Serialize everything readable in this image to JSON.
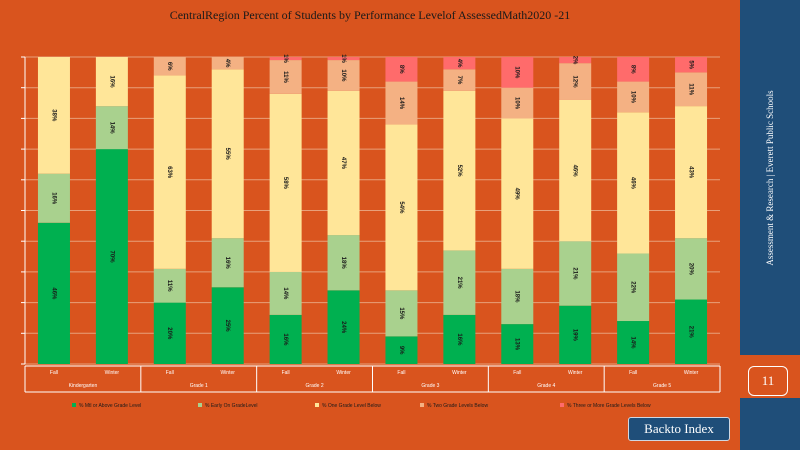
{
  "slide": {
    "sidebar_text": "Assessment & Research | Everett Public Schools",
    "page_number": "11",
    "back_button": "Backto Index"
  },
  "colors": {
    "background": "#d9541e",
    "sidebar": "#1f4e79",
    "met_above": "#00b050",
    "one_grade_level": "#a9d18e",
    "on_grade": "#ffe699",
    "two_grades_below": "#f4b183",
    "three_or_more_below": "#ff6b6b"
  },
  "chart_data": {
    "type": "bar",
    "stacked": true,
    "title": "CentralRegion Percent of Students by Performance Levelof AssessedMath2020 -21",
    "xlabel": "",
    "ylabel": "",
    "ylim": [
      0,
      100
    ],
    "grid": true,
    "legend_placement": "bottom",
    "categories": [
      "Fall",
      "Winter",
      "Fall",
      "Winter",
      "Fall",
      "Winter",
      "Fall",
      "Winter",
      "Fall",
      "Winter",
      "Fall",
      "Winter"
    ],
    "groups": [
      "Kindergarten",
      "Grade 1",
      "Grade 2",
      "Grade 3",
      "Grade 4",
      "Grade 5"
    ],
    "series": [
      {
        "name": "% Mtl or Above Grade Level",
        "color": "#00b050",
        "values": [
          46,
          70,
          20,
          25,
          16,
          24,
          9,
          16,
          13,
          19,
          14,
          21
        ]
      },
      {
        "name": "% Early On GradeLevel",
        "color": "#a9d18e",
        "values": [
          16,
          14,
          11,
          16,
          14,
          18,
          15,
          21,
          18,
          21,
          22,
          20
        ]
      },
      {
        "name": "% One Grade Level Below",
        "color": "#ffe699",
        "values": [
          38,
          16,
          63,
          55,
          58,
          47,
          54,
          52,
          49,
          46,
          46,
          43
        ]
      },
      {
        "name": "% Two Grade Levels Below",
        "color": "#f4b183",
        "values": [
          0,
          0,
          6,
          4,
          11,
          10,
          14,
          7,
          10,
          12,
          10,
          11
        ]
      },
      {
        "name": "% Three or More Grade Levels Below",
        "color": "#ff6b6b",
        "values": [
          0,
          0,
          0,
          0,
          1,
          1,
          8,
          4,
          10,
          2,
          8,
          5
        ]
      }
    ]
  }
}
